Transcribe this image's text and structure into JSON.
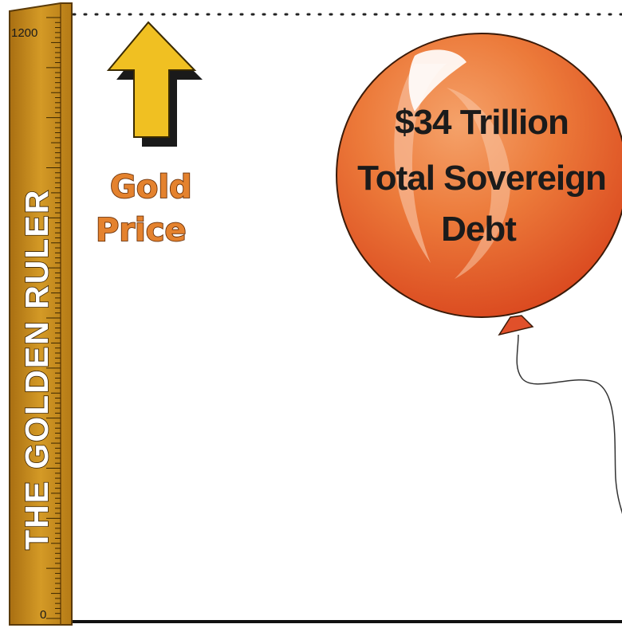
{
  "ruler": {
    "title": "THE GOLDEN RULER",
    "top_label": "1200",
    "bottom_label": "0",
    "color": "#c8901c"
  },
  "arrow": {
    "icon": "up-arrow-icon",
    "color": "#f0c022"
  },
  "gold_label": {
    "line1": "Gold",
    "line2": "Price"
  },
  "balloon": {
    "line1": "$34 Trillion",
    "line2": "Total Sovereign",
    "line3": "Debt",
    "color": "#e86a25"
  }
}
